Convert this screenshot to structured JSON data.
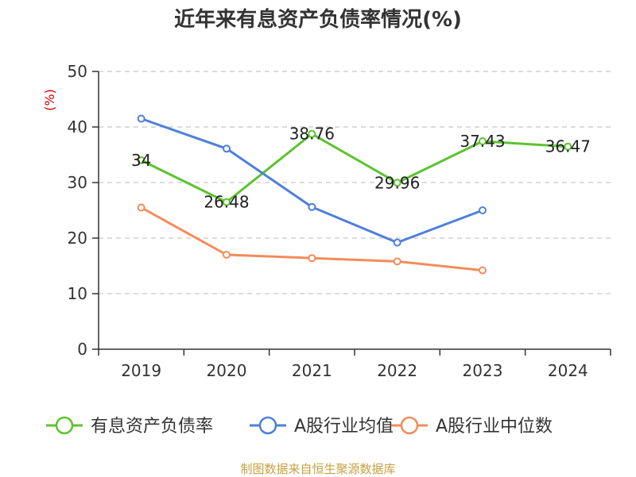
{
  "chart_data": {
    "type": "line",
    "title": "近年来有息资产负债率情况(%)",
    "y_unit": "(%)",
    "source": "制图数据来自恒生聚源数据库",
    "categories": [
      "2019",
      "2020",
      "2021",
      "2022",
      "2023",
      "2024"
    ],
    "ylim": [
      0,
      50
    ],
    "yticks": [
      0,
      10,
      20,
      30,
      40,
      50
    ],
    "grid": "horizontal-dashed",
    "legend_position": "bottom",
    "series": [
      {
        "name": "有息资产负债率",
        "color": "#5ec231",
        "values": [
          34,
          26.48,
          38.76,
          29.96,
          37.43,
          36.47
        ],
        "labels": [
          "34",
          "26.48",
          "38.76",
          "29.96",
          "37.43",
          "36.47"
        ]
      },
      {
        "name": "A股行业均值",
        "color": "#4f7fd8",
        "values": [
          41.5,
          36.1,
          25.6,
          19.2,
          25.0,
          null
        ]
      },
      {
        "name": "A股行业中位数",
        "color": "#f28c5a",
        "values": [
          25.5,
          17.0,
          16.4,
          15.8,
          14.2,
          null
        ]
      }
    ]
  }
}
